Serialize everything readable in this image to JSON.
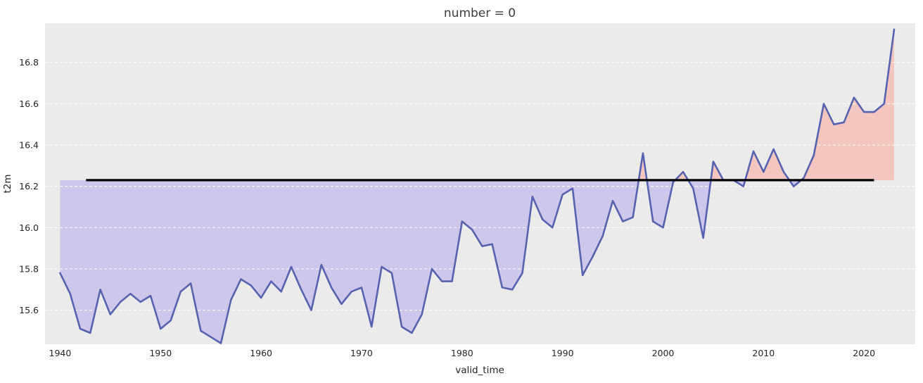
{
  "figure": {
    "title": "number = 0"
  },
  "chart_data": {
    "type": "line",
    "title": "number = 0",
    "xlabel": "valid_time",
    "ylabel": "t2m",
    "x": [
      1940,
      1941,
      1942,
      1943,
      1944,
      1945,
      1946,
      1947,
      1948,
      1949,
      1950,
      1951,
      1952,
      1953,
      1954,
      1955,
      1956,
      1957,
      1958,
      1959,
      1960,
      1961,
      1962,
      1963,
      1964,
      1965,
      1966,
      1967,
      1968,
      1969,
      1970,
      1971,
      1972,
      1973,
      1974,
      1975,
      1976,
      1977,
      1978,
      1979,
      1980,
      1981,
      1982,
      1983,
      1984,
      1985,
      1986,
      1987,
      1988,
      1989,
      1990,
      1991,
      1992,
      1993,
      1994,
      1995,
      1996,
      1997,
      1998,
      1999,
      2000,
      2001,
      2002,
      2003,
      2004,
      2005,
      2006,
      2007,
      2008,
      2009,
      2010,
      2011,
      2012,
      2013,
      2014,
      2015,
      2016,
      2017,
      2018,
      2019,
      2020,
      2021,
      2022,
      2023
    ],
    "series": [
      {
        "name": "t2m",
        "values": [
          15.78,
          15.68,
          15.51,
          15.49,
          15.7,
          15.58,
          15.64,
          15.68,
          15.64,
          15.67,
          15.51,
          15.55,
          15.69,
          15.73,
          15.5,
          15.47,
          15.44,
          15.65,
          15.75,
          15.72,
          15.66,
          15.74,
          15.69,
          15.81,
          15.7,
          15.6,
          15.82,
          15.71,
          15.63,
          15.69,
          15.71,
          15.52,
          15.81,
          15.78,
          15.52,
          15.49,
          15.58,
          15.8,
          15.74,
          15.74,
          16.03,
          15.99,
          15.91,
          15.92,
          15.71,
          15.7,
          15.78,
          16.15,
          16.04,
          16.0,
          16.16,
          16.19,
          15.77,
          15.86,
          15.96,
          16.13,
          16.03,
          16.05,
          16.36,
          16.03,
          16.0,
          16.22,
          16.27,
          16.19,
          15.95,
          16.32,
          16.23,
          16.23,
          16.2,
          16.37,
          16.27,
          16.38,
          16.27,
          16.2,
          16.24,
          16.35,
          16.6,
          16.5,
          16.51,
          16.63,
          16.56,
          16.56,
          16.6,
          16.96
        ]
      }
    ],
    "reference_line": {
      "value": 16.23,
      "from_year": 1943,
      "to_year": 2021,
      "color": "#000000"
    },
    "x_ticks": [
      1940,
      1950,
      1960,
      1970,
      1980,
      1990,
      2000,
      2010,
      2020
    ],
    "y_ticks": [
      15.6,
      15.8,
      16.0,
      16.2,
      16.4,
      16.6,
      16.8
    ],
    "xlim": [
      1938.5,
      2025.1
    ],
    "ylim": [
      15.435,
      16.99
    ],
    "grid": "horizontal-dashed",
    "legend_position": "none",
    "colors": {
      "line": "#5763ae",
      "fill_below_reference": "#cdc7ec",
      "fill_above_reference": "#f3c6bf",
      "plot_background": "#ebebeb",
      "figure_background": "#ffffff",
      "gridline": "#ffffff"
    }
  }
}
